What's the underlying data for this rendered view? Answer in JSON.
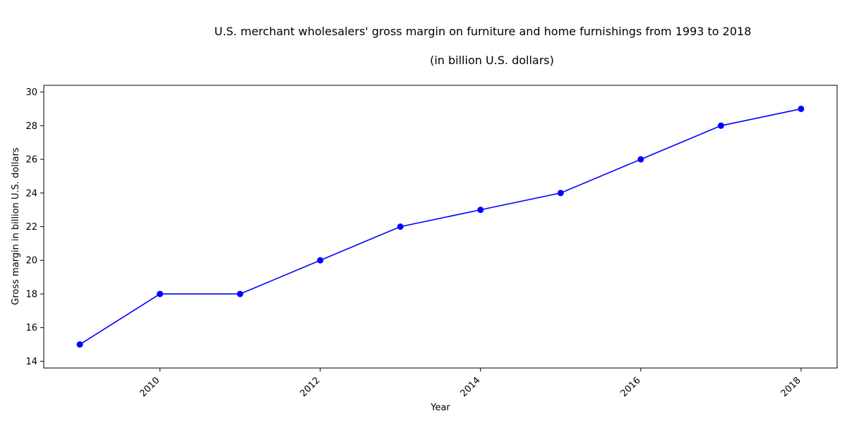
{
  "chart_data": {
    "type": "line",
    "title": "U.S. merchant wholesalers' gross margin on furniture and home furnishings from 1993 to 2018",
    "subtitle": "(in billion U.S. dollars)",
    "xlabel": "Year",
    "ylabel": "Gross margin in billion U.S. dollars",
    "x": [
      2009,
      2010,
      2011,
      2012,
      2013,
      2014,
      2015,
      2016,
      2017,
      2018
    ],
    "series": [
      {
        "values": [
          15,
          18,
          18,
          20,
          22,
          23,
          24,
          26,
          28,
          29
        ],
        "color": "#0000ff"
      }
    ],
    "xlim": [
      2008.55,
      2018.45
    ],
    "ylim": [
      13.6,
      30.4
    ],
    "xticks": [
      2010,
      2012,
      2014,
      2016,
      2018
    ],
    "xtick_labels": [
      "2010",
      "2012",
      "2014",
      "2016",
      "2018"
    ],
    "yticks": [
      14,
      16,
      18,
      20,
      22,
      24,
      26,
      28,
      30
    ],
    "ytick_labels": [
      "14",
      "16",
      "18",
      "20",
      "22",
      "24",
      "26",
      "28",
      "30"
    ],
    "grid": false,
    "legend": "none"
  }
}
